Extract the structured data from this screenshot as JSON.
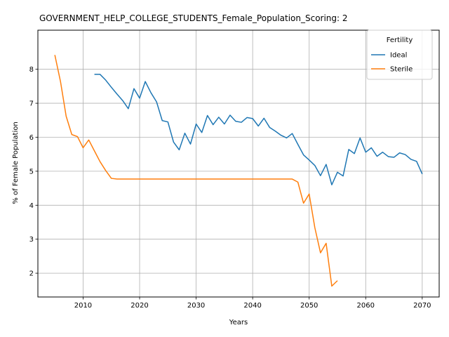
{
  "chart_data": {
    "type": "line",
    "title": "GOVERNMENT_HELP_COLLEGE_STUDENTS_Female_Population_Scoring: 2",
    "xlabel": "Years",
    "ylabel": "% of Female Population",
    "xlim": [
      2002,
      2073
    ],
    "ylim": [
      1.3,
      9.15
    ],
    "xticks": [
      2010,
      2020,
      2030,
      2040,
      2050,
      2060,
      2070
    ],
    "yticks": [
      2,
      3,
      4,
      5,
      6,
      7,
      8
    ],
    "grid": true,
    "legend": {
      "title": "Fertility",
      "placement": "top-right"
    },
    "series": [
      {
        "name": "Ideal",
        "color": "#1f77b4",
        "x": [
          2012,
          2013,
          2014,
          2015,
          2016,
          2017,
          2018,
          2019,
          2020,
          2021,
          2022,
          2023,
          2024,
          2025,
          2026,
          2027,
          2028,
          2029,
          2030,
          2031,
          2032,
          2033,
          2034,
          2035,
          2036,
          2037,
          2038,
          2039,
          2040,
          2041,
          2042,
          2043,
          2044,
          2045,
          2046,
          2047,
          2048,
          2049,
          2050,
          2051,
          2052,
          2053,
          2054,
          2055,
          2056,
          2057,
          2058,
          2059,
          2060,
          2061,
          2062,
          2063,
          2064,
          2065,
          2066,
          2067,
          2068,
          2069,
          2070
        ],
        "y": [
          7.85,
          7.85,
          7.68,
          7.47,
          7.27,
          7.08,
          6.84,
          7.43,
          7.15,
          7.64,
          7.31,
          7.04,
          6.49,
          6.45,
          5.86,
          5.63,
          6.12,
          5.8,
          6.39,
          6.14,
          6.64,
          6.37,
          6.59,
          6.39,
          6.65,
          6.47,
          6.44,
          6.58,
          6.55,
          6.33,
          6.56,
          6.29,
          6.18,
          6.06,
          5.98,
          6.11,
          5.79,
          5.48,
          5.33,
          5.17,
          4.87,
          5.2,
          4.6,
          4.97,
          4.86,
          5.64,
          5.52,
          5.98,
          5.56,
          5.69,
          5.44,
          5.56,
          5.43,
          5.41,
          5.54,
          5.49,
          5.35,
          5.29,
          4.92
        ]
      },
      {
        "name": "Sterile",
        "color": "#ff7f0e",
        "x": [
          2005,
          2006,
          2007,
          2008,
          2009,
          2010,
          2011,
          2012,
          2013,
          2014,
          2015,
          2016,
          2017,
          2018,
          2019,
          2020,
          2021,
          2022,
          2023,
          2024,
          2025,
          2026,
          2027,
          2028,
          2029,
          2030,
          2031,
          2032,
          2033,
          2034,
          2035,
          2036,
          2037,
          2038,
          2039,
          2040,
          2041,
          2042,
          2043,
          2044,
          2045,
          2046,
          2047,
          2048,
          2049,
          2050,
          2051,
          2052,
          2053,
          2054,
          2055
        ],
        "y": [
          8.42,
          7.64,
          6.62,
          6.08,
          6.02,
          5.69,
          5.92,
          5.6,
          5.28,
          5.02,
          4.79,
          4.77,
          4.77,
          4.77,
          4.77,
          4.77,
          4.77,
          4.77,
          4.77,
          4.77,
          4.77,
          4.77,
          4.77,
          4.77,
          4.77,
          4.77,
          4.77,
          4.77,
          4.77,
          4.77,
          4.77,
          4.77,
          4.77,
          4.77,
          4.77,
          4.77,
          4.77,
          4.77,
          4.77,
          4.77,
          4.77,
          4.77,
          4.77,
          4.68,
          4.06,
          4.33,
          3.34,
          2.6,
          2.88,
          1.62,
          1.78
        ]
      }
    ]
  }
}
